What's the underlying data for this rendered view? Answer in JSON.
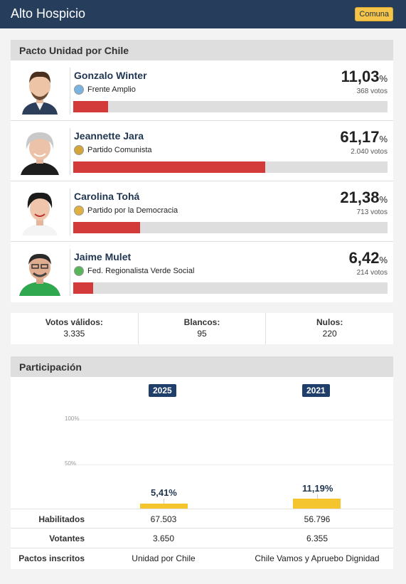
{
  "header": {
    "title": "Alto Hospicio",
    "badge": "Comuna"
  },
  "pact": {
    "title": "Pacto Unidad por Chile"
  },
  "candidates": [
    {
      "name": "Gonzalo Winter",
      "party": "Frente Amplio",
      "pct_int": "11,03",
      "pct_sym": "%",
      "votes": "368 votos",
      "share": 11.03,
      "party_color": "#7ab3e0"
    },
    {
      "name": "Jeannette Jara",
      "party": "Partido Comunista",
      "pct_int": "61,17",
      "pct_sym": "%",
      "votes": "2.040 votos",
      "share": 61.17,
      "party_color": "#d4a63a"
    },
    {
      "name": "Carolina Tohá",
      "party": "Partido por la Democracia",
      "pct_int": "21,38",
      "pct_sym": "%",
      "votes": "713 votos",
      "share": 21.38,
      "party_color": "#e1b13f"
    },
    {
      "name": "Jaime Mulet",
      "party": "Fed. Regionalista Verde Social",
      "pct_int": "6,42",
      "pct_sym": "%",
      "votes": "214 votos",
      "share": 6.42,
      "party_color": "#59b55a"
    }
  ],
  "totals": [
    {
      "label": "Votos válidos:",
      "value": "3.335"
    },
    {
      "label": "Blancos:",
      "value": "95"
    },
    {
      "label": "Nulos:",
      "value": "220"
    }
  ],
  "participation": {
    "title": "Participación",
    "gridlabels": [
      "100%",
      "50%"
    ],
    "years": [
      {
        "year": "2025",
        "pct_label": "5,41%",
        "pct": 5.41,
        "habilitados": "67.503",
        "votantes": "3.650",
        "pactos": "Unidad por Chile"
      },
      {
        "year": "2021",
        "pct_label": "11,19%",
        "pct": 11.19,
        "habilitados": "56.796",
        "votantes": "6.355",
        "pactos": "Chile Vamos y Apruebo Dignidad"
      }
    ],
    "rows": {
      "habilitados": "Habilitados",
      "votantes": "Votantes",
      "pactos": "Pactos inscritos"
    }
  },
  "colors": {
    "header_bg": "#263e5c",
    "bar_red": "#d33a3a",
    "bar_yellow": "#f4c52f",
    "year_badge": "#1f3f6a"
  }
}
